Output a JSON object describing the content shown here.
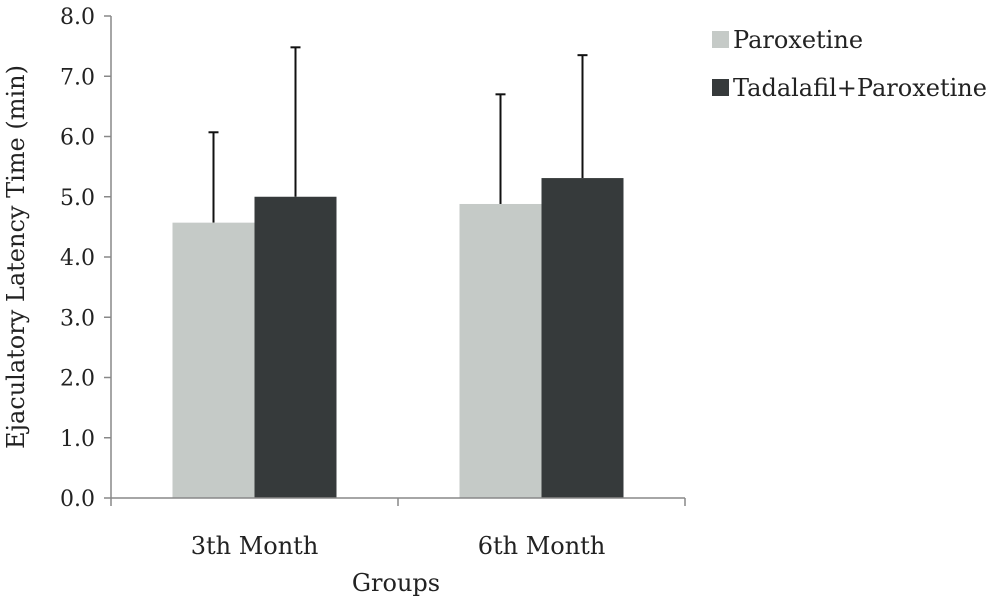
{
  "chart_data": {
    "type": "bar",
    "title": "",
    "xlabel": "Groups",
    "ylabel": "Ejaculatory Latency Time (min)",
    "ylim": [
      0,
      8
    ],
    "yticks": [
      "0.0",
      "1.0",
      "2.0",
      "3.0",
      "4.0",
      "5.0",
      "6.0",
      "7.0",
      "8.0"
    ],
    "categories": [
      "3th Month",
      "6th Month"
    ],
    "series": [
      {
        "name": "Paroxetine",
        "color": "#c5cac7",
        "values": [
          4.57,
          4.88
        ],
        "error_upper": [
          1.5,
          1.82
        ]
      },
      {
        "name": "Tadalafil+Paroxetine",
        "color": "#363a3b",
        "values": [
          5.0,
          5.31
        ],
        "error_upper": [
          2.48,
          2.04
        ]
      }
    ],
    "legend_position": "top-right",
    "grid": false
  }
}
